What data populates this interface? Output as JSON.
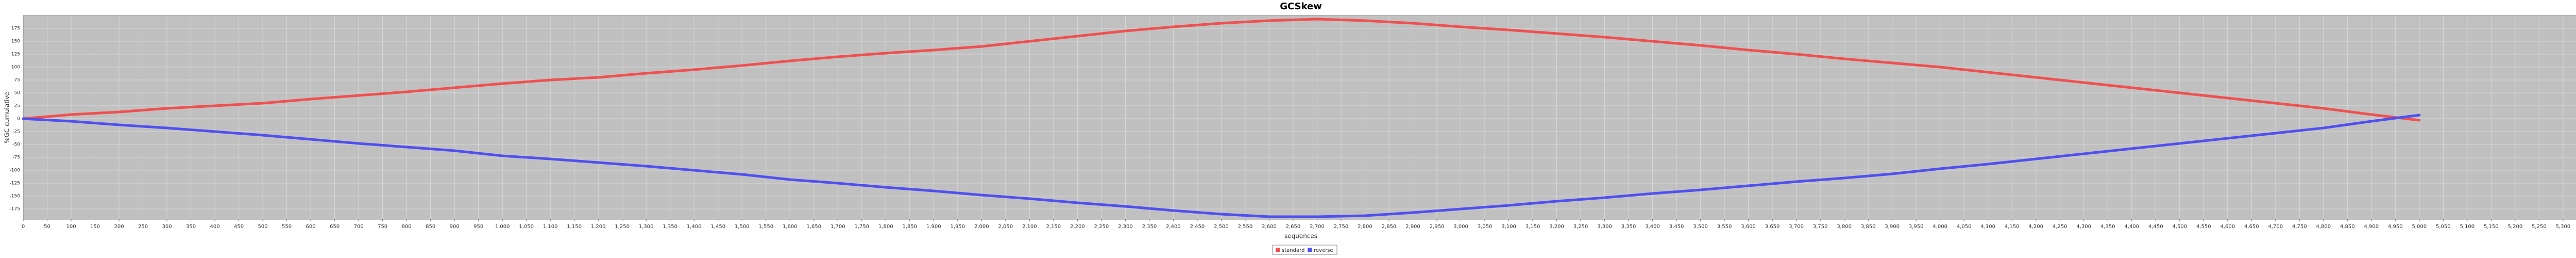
{
  "chart_data": {
    "type": "line",
    "title": "GCSkew",
    "x_label": "sequences",
    "y_label": "%GC cumulative",
    "x": [
      0,
      100,
      200,
      300,
      400,
      500,
      600,
      700,
      800,
      900,
      1000,
      1100,
      1200,
      1300,
      1400,
      1500,
      1600,
      1700,
      1800,
      1900,
      2000,
      2100,
      2200,
      2300,
      2400,
      2500,
      2600,
      2700,
      2800,
      2900,
      3000,
      3100,
      3200,
      3300,
      3400,
      3500,
      3600,
      3700,
      3800,
      3900,
      4000,
      4100,
      4200,
      4300,
      4400,
      4500,
      4600,
      4700,
      4800,
      4900,
      5000
    ],
    "series": [
      {
        "name": "standard",
        "color": "#f05050",
        "values": [
          0,
          8,
          13,
          20,
          25,
          30,
          38,
          45,
          52,
          60,
          68,
          75,
          80,
          88,
          95,
          103,
          112,
          120,
          127,
          133,
          140,
          150,
          160,
          170,
          178,
          185,
          190,
          193,
          190,
          185,
          178,
          172,
          165,
          158,
          150,
          142,
          133,
          125,
          116,
          108,
          100,
          90,
          80,
          70,
          60,
          50,
          40,
          30,
          20,
          8,
          -3
        ]
      },
      {
        "name": "reverse",
        "color": "#5050f0",
        "values": [
          0,
          -5,
          -12,
          -18,
          -25,
          -32,
          -40,
          -48,
          -55,
          -62,
          -72,
          -78,
          -85,
          -92,
          -100,
          -108,
          -118,
          -125,
          -133,
          -140,
          -148,
          -155,
          -163,
          -170,
          -178,
          -185,
          -190,
          -190,
          -188,
          -182,
          -175,
          -168,
          -160,
          -153,
          -145,
          -138,
          -130,
          -122,
          -115,
          -107,
          -97,
          -88,
          -78,
          -68,
          -58,
          -48,
          -38,
          -28,
          -18,
          -5,
          7
        ]
      }
    ],
    "xlim": [
      0,
      5370
    ],
    "ylim": [
      -195,
      200
    ],
    "yticks": [
      -175,
      -150,
      -125,
      -100,
      -75,
      -50,
      -25,
      0,
      25,
      50,
      75,
      100,
      125,
      150,
      175
    ],
    "xticks": [
      0,
      50,
      100,
      150,
      200,
      250,
      300,
      350,
      400,
      450,
      500,
      550,
      600,
      650,
      700,
      750,
      800,
      850,
      900,
      950,
      {
        "value": 1000,
        "label": "1,000"
      },
      {
        "value": 1050,
        "label": "1,050"
      },
      {
        "value": 1100,
        "label": "1,100"
      },
      {
        "value": 1150,
        "label": "1,150"
      },
      {
        "value": 1200,
        "label": "1,200"
      },
      {
        "value": 1250,
        "label": "1,250"
      },
      {
        "value": 1300,
        "label": "1,300"
      },
      {
        "value": 1350,
        "label": "1,350"
      },
      {
        "value": 1400,
        "label": "1,400"
      },
      {
        "value": 1450,
        "label": "1,450"
      },
      {
        "value": 1500,
        "label": "1,500"
      },
      {
        "value": 1550,
        "label": "1,550"
      },
      {
        "value": 1600,
        "label": "1,600"
      },
      {
        "value": 1650,
        "label": "1,650"
      },
      {
        "value": 1700,
        "label": "1,700"
      },
      {
        "value": 1750,
        "label": "1,750"
      },
      {
        "value": 1800,
        "label": "1,800"
      },
      {
        "value": 1850,
        "label": "1,850"
      },
      {
        "value": 1900,
        "label": "1,900"
      },
      {
        "value": 1950,
        "label": "1,950"
      },
      {
        "value": 2000,
        "label": "2,000"
      },
      {
        "value": 2050,
        "label": "2,050"
      },
      {
        "value": 2100,
        "label": "2,100"
      },
      {
        "value": 2150,
        "label": "2,150"
      },
      {
        "value": 2200,
        "label": "2,200"
      },
      {
        "value": 2250,
        "label": "2,250"
      },
      {
        "value": 2300,
        "label": "2,300"
      },
      {
        "value": 2350,
        "label": "2,350"
      },
      {
        "value": 2400,
        "label": "2,400"
      },
      {
        "value": 2450,
        "label": "2,450"
      },
      {
        "value": 2500,
        "label": "2,500"
      },
      {
        "value": 2550,
        "label": "2,550"
      },
      {
        "value": 2600,
        "label": "2,600"
      },
      {
        "value": 2650,
        "label": "2,650"
      },
      {
        "value": 2700,
        "label": "2,700"
      },
      {
        "value": 2750,
        "label": "2,750"
      },
      {
        "value": 2800,
        "label": "2,800"
      },
      {
        "value": 2850,
        "label": "2,850"
      },
      {
        "value": 2900,
        "label": "2,900"
      },
      {
        "value": 2950,
        "label": "2,950"
      },
      {
        "value": 3000,
        "label": "3,000"
      },
      {
        "value": 3050,
        "label": "3,050"
      },
      {
        "value": 3100,
        "label": "3,100"
      },
      {
        "value": 3150,
        "label": "3,150"
      },
      {
        "value": 3200,
        "label": "3,200"
      },
      {
        "value": 3250,
        "label": "3,250"
      },
      {
        "value": 3300,
        "label": "3,300"
      },
      {
        "value": 3350,
        "label": "3,350"
      },
      {
        "value": 3400,
        "label": "3,400"
      },
      {
        "value": 3450,
        "label": "3,450"
      },
      {
        "value": 3500,
        "label": "3,500"
      },
      {
        "value": 3550,
        "label": "3,550"
      },
      {
        "value": 3600,
        "label": "3,600"
      },
      {
        "value": 3650,
        "label": "3,650"
      },
      {
        "value": 3700,
        "label": "3,700"
      },
      {
        "value": 3750,
        "label": "3,750"
      },
      {
        "value": 3800,
        "label": "3,800"
      },
      {
        "value": 3850,
        "label": "3,850"
      },
      {
        "value": 3900,
        "label": "3,900"
      },
      {
        "value": 3950,
        "label": "3,950"
      },
      {
        "value": 4000,
        "label": "4,000"
      },
      {
        "value": 4050,
        "label": "4,050"
      },
      {
        "value": 4100,
        "label": "4,100"
      },
      {
        "value": 4150,
        "label": "4,150"
      },
      {
        "value": 4200,
        "label": "4,200"
      },
      {
        "value": 4250,
        "label": "4,250"
      },
      {
        "value": 4300,
        "label": "4,300"
      },
      {
        "value": 4350,
        "label": "4,350"
      },
      {
        "value": 4400,
        "label": "4,400"
      },
      {
        "value": 4450,
        "label": "4,450"
      },
      {
        "value": 4500,
        "label": "4,500"
      },
      {
        "value": 4550,
        "label": "4,550"
      },
      {
        "value": 4600,
        "label": "4,600"
      },
      {
        "value": 4650,
        "label": "4,650"
      },
      {
        "value": 4700,
        "label": "4,700"
      },
      {
        "value": 4750,
        "label": "4,750"
      },
      {
        "value": 4800,
        "label": "4,800"
      },
      {
        "value": 4850,
        "label": "4,850"
      },
      {
        "value": 4900,
        "label": "4,900"
      },
      {
        "value": 4950,
        "label": "4,950"
      },
      {
        "value": 5000,
        "label": "5,000"
      },
      {
        "value": 5050,
        "label": "5,050"
      },
      {
        "value": 5100,
        "label": "5,100"
      },
      {
        "value": 5150,
        "label": "5,150"
      },
      {
        "value": 5200,
        "label": "5,200"
      },
      {
        "value": 5250,
        "label": "5,250"
      },
      {
        "value": 5300,
        "label": "5,300"
      },
      {
        "value": 5350,
        "label": "5,350"
      }
    ],
    "grid": true,
    "legend": "bottom"
  }
}
